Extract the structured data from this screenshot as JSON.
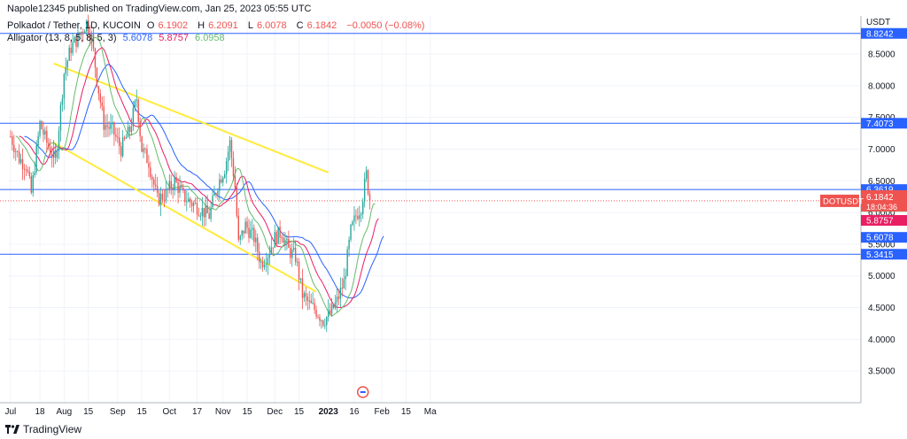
{
  "header": {
    "published": "Napole12345 published on TradingView.com, Jan 25, 2023 05:55 UTC",
    "symbol": "Polkadot / Tether, 1D, KUCOIN",
    "o_label": "O",
    "o_value": "6.1902",
    "h_label": "H",
    "h_value": "6.2091",
    "l_label": "L",
    "l_value": "6.0078",
    "c_label": "C",
    "c_value": "6.1842",
    "change": "−0.0050 (−0.08%)",
    "alligator_label": "Alligator (13, 8, 5, 8, 5, 3)",
    "alligator_values": [
      "5.6078",
      "5.8757",
      "6.0958"
    ]
  },
  "footer": {
    "brand": "TradingView"
  },
  "colors": {
    "up": "#26a69a",
    "down": "#ef5350",
    "jaw": "#2962ff",
    "teeth": "#e91e63",
    "lips": "#66bb6a",
    "channel": "#ffeb3b",
    "hline": "#2962ff",
    "axis_text": "#131722"
  },
  "chart_data": {
    "type": "candlestick",
    "currency": "USDT",
    "ylim": [
      3.0,
      9.1
    ],
    "y_ticks": [
      "3.5000",
      "4.0000",
      "4.5000",
      "5.0000",
      "5.5000",
      "6.0000",
      "6.5000",
      "7.0000",
      "7.5000",
      "8.0000",
      "8.5000"
    ],
    "x_ticks": [
      "Jul",
      "18",
      "Aug",
      "15",
      "Sep",
      "15",
      "Oct",
      "17",
      "Nov",
      "15",
      "Dec",
      "15",
      "2023",
      "16",
      "Feb",
      "15",
      "Ma"
    ],
    "horizontal_lines": [
      8.8242,
      7.4073,
      6.3619,
      5.3415
    ],
    "current_price": {
      "symbol": "DOTUSDT",
      "value": "6.1842",
      "countdown": "18:04:36"
    },
    "price_labels": [
      {
        "value": "8.8242",
        "type": "hline"
      },
      {
        "value": "7.4073",
        "type": "hline"
      },
      {
        "value": "6.3619",
        "type": "hline"
      },
      {
        "value": "6.0958",
        "type": "lips"
      },
      {
        "value": "5.8757",
        "type": "teeth"
      },
      {
        "value": "5.6078",
        "type": "jaw"
      },
      {
        "value": "5.3415",
        "type": "hline"
      }
    ],
    "channel_upper": [
      [
        "2022-07-26",
        8.35
      ],
      [
        "2023-01-01",
        6.63
      ]
    ],
    "channel_lower": [
      [
        "2022-07-26",
        7.1
      ],
      [
        "2022-12-25",
        4.75
      ]
    ],
    "closes": [
      {
        "date": "2022-07-01",
        "value": 7.2
      },
      {
        "date": "2022-07-06",
        "value": 6.85
      },
      {
        "date": "2022-07-10",
        "value": 6.75
      },
      {
        "date": "2022-07-13",
        "value": 6.3
      },
      {
        "date": "2022-07-18",
        "value": 7.4
      },
      {
        "date": "2022-07-22",
        "value": 7.1
      },
      {
        "date": "2022-07-27",
        "value": 6.8
      },
      {
        "date": "2022-08-01",
        "value": 8.2
      },
      {
        "date": "2022-08-05",
        "value": 8.6
      },
      {
        "date": "2022-08-10",
        "value": 8.8
      },
      {
        "date": "2022-08-14",
        "value": 9.0
      },
      {
        "date": "2022-08-17",
        "value": 8.75
      },
      {
        "date": "2022-08-20",
        "value": 8.1
      },
      {
        "date": "2022-08-24",
        "value": 7.4
      },
      {
        "date": "2022-08-29",
        "value": 7.3
      },
      {
        "date": "2022-09-03",
        "value": 7.0
      },
      {
        "date": "2022-09-08",
        "value": 7.3
      },
      {
        "date": "2022-09-12",
        "value": 7.8
      },
      {
        "date": "2022-09-15",
        "value": 7.0
      },
      {
        "date": "2022-09-19",
        "value": 6.8
      },
      {
        "date": "2022-09-24",
        "value": 6.2
      },
      {
        "date": "2022-09-29",
        "value": 6.3
      },
      {
        "date": "2022-10-04",
        "value": 6.5
      },
      {
        "date": "2022-10-09",
        "value": 6.25
      },
      {
        "date": "2022-10-14",
        "value": 6.15
      },
      {
        "date": "2022-10-19",
        "value": 6.05
      },
      {
        "date": "2022-10-24",
        "value": 5.95
      },
      {
        "date": "2022-10-29",
        "value": 6.45
      },
      {
        "date": "2022-11-02",
        "value": 6.7
      },
      {
        "date": "2022-11-05",
        "value": 7.1
      },
      {
        "date": "2022-11-08",
        "value": 6.4
      },
      {
        "date": "2022-11-10",
        "value": 5.5
      },
      {
        "date": "2022-11-14",
        "value": 5.8
      },
      {
        "date": "2022-11-19",
        "value": 5.6
      },
      {
        "date": "2022-11-23",
        "value": 5.2
      },
      {
        "date": "2022-11-27",
        "value": 5.35
      },
      {
        "date": "2022-12-01",
        "value": 5.6
      },
      {
        "date": "2022-12-05",
        "value": 5.7
      },
      {
        "date": "2022-12-09",
        "value": 5.4
      },
      {
        "date": "2022-12-13",
        "value": 5.3
      },
      {
        "date": "2022-12-17",
        "value": 4.7
      },
      {
        "date": "2022-12-21",
        "value": 4.55
      },
      {
        "date": "2022-12-25",
        "value": 4.45
      },
      {
        "date": "2022-12-29",
        "value": 4.3
      },
      {
        "date": "2023-01-02",
        "value": 4.4
      },
      {
        "date": "2023-01-06",
        "value": 4.6
      },
      {
        "date": "2023-01-10",
        "value": 4.9
      },
      {
        "date": "2023-01-14",
        "value": 5.7
      },
      {
        "date": "2023-01-17",
        "value": 5.95
      },
      {
        "date": "2023-01-20",
        "value": 6.1
      },
      {
        "date": "2023-01-23",
        "value": 6.6
      },
      {
        "date": "2023-01-25",
        "value": 6.18
      }
    ]
  }
}
